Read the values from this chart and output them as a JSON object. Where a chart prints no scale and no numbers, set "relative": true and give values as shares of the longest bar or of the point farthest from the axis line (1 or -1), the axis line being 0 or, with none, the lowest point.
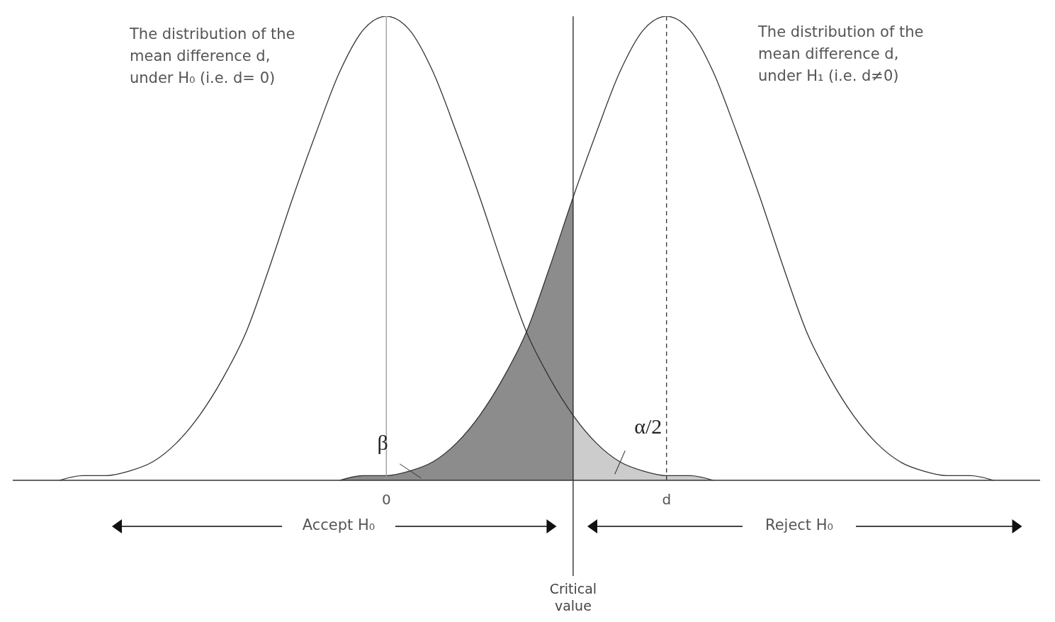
{
  "chart_data": {
    "type": "line",
    "relative": true,
    "categories": [
      null,
      null,
      null,
      null,
      null,
      null,
      null,
      null,
      null,
      null,
      null,
      null,
      null,
      null,
      null,
      null,
      "0",
      null,
      null,
      null,
      null,
      null,
      null,
      null,
      null,
      null,
      null,
      null,
      "d",
      null,
      null,
      null,
      null,
      null,
      null,
      null,
      null,
      null,
      null,
      null,
      null,
      null,
      null,
      null,
      null
    ],
    "series": [
      {
        "type": "area",
        "name": "β",
        "color": "#8c8c8c",
        "values": [
          null,
          null,
          null,
          null,
          null,
          null,
          null,
          null,
          null,
          null,
          null,
          null,
          null,
          null,
          0,
          0.01,
          0.01,
          0.02,
          0.04,
          0.08,
          0.14,
          0.22,
          0.32,
          0.46,
          0.61,
          null,
          null,
          null,
          null,
          null,
          null,
          null,
          null,
          null,
          null,
          null,
          null,
          null,
          null,
          null,
          null,
          null,
          null,
          null,
          null
        ]
      },
      {
        "type": "area",
        "name": "α/2",
        "color": "#cccccc",
        "values": [
          null,
          null,
          null,
          null,
          null,
          null,
          null,
          null,
          null,
          null,
          null,
          null,
          null,
          null,
          null,
          null,
          null,
          null,
          null,
          null,
          null,
          null,
          null,
          null,
          0.14,
          0.08,
          0.04,
          0.02,
          0.01,
          0.01,
          0,
          null,
          null,
          null,
          null,
          null,
          null,
          null,
          null,
          null,
          null,
          null,
          null,
          null,
          null
        ]
      },
      {
        "color": "#333333",
        "values": [
          null,
          null,
          0,
          0.01,
          0.01,
          0.02,
          0.04,
          0.08,
          0.14,
          0.22,
          0.32,
          0.46,
          0.61,
          0.75,
          0.88,
          0.97,
          1,
          0.97,
          0.88,
          0.75,
          0.61,
          0.46,
          0.32,
          0.22,
          0.14,
          0.08,
          0.04,
          0.02,
          0.01,
          0.01,
          0,
          null,
          null,
          null,
          null,
          null,
          null,
          null,
          null,
          null,
          null,
          null,
          null,
          null,
          null
        ]
      },
      {
        "color": "#333333",
        "values": [
          null,
          null,
          null,
          null,
          null,
          null,
          null,
          null,
          null,
          null,
          null,
          null,
          null,
          null,
          0,
          0.01,
          0.01,
          0.02,
          0.04,
          0.08,
          0.14,
          0.22,
          0.32,
          0.46,
          0.61,
          0.75,
          0.88,
          0.97,
          1,
          0.97,
          0.88,
          0.75,
          0.61,
          0.46,
          0.32,
          0.22,
          0.14,
          0.08,
          0.04,
          0.02,
          0.01,
          0.01,
          0,
          null,
          null
        ]
      }
    ],
    "ref_lines": [
      {
        "axis": "x",
        "value": "0",
        "color": "#999999",
        "line_style": "solid"
      },
      {
        "axis": "x",
        "value": "d",
        "color": "#333333",
        "line_style": "dashed"
      },
      {
        "axis": "x",
        "label": "Critical value",
        "color": "#222222",
        "line_style": "solid"
      }
    ],
    "annotations": [
      "The distribution of the\nmean difference d,\nunder H₀ (i.e. d= 0)",
      "The distribution of the\nmean difference d,\nunder H₁ (i.e. d≠0)",
      "Accept H₀",
      "Reject H₀"
    ]
  }
}
